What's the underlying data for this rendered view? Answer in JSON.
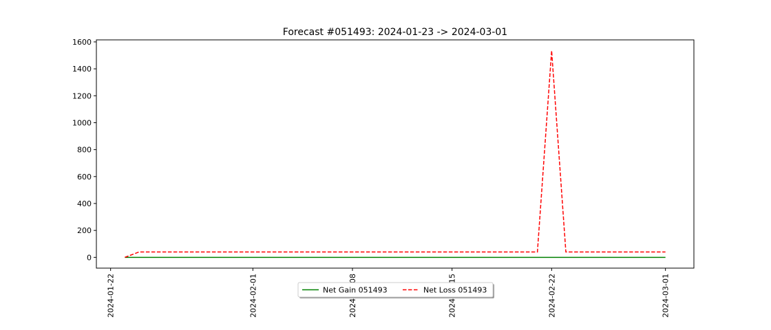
{
  "chart_data": {
    "type": "line",
    "title": "Forecast #051493: 2024-01-23 -> 2024-03-01",
    "xlabel": "",
    "ylabel": "",
    "x": [
      "2024-01-23",
      "2024-01-24",
      "2024-01-25",
      "2024-01-26",
      "2024-01-27",
      "2024-01-28",
      "2024-01-29",
      "2024-01-30",
      "2024-01-31",
      "2024-02-01",
      "2024-02-02",
      "2024-02-03",
      "2024-02-04",
      "2024-02-05",
      "2024-02-06",
      "2024-02-07",
      "2024-02-08",
      "2024-02-09",
      "2024-02-10",
      "2024-02-11",
      "2024-02-12",
      "2024-02-13",
      "2024-02-14",
      "2024-02-15",
      "2024-02-16",
      "2024-02-17",
      "2024-02-18",
      "2024-02-19",
      "2024-02-20",
      "2024-02-21",
      "2024-02-22",
      "2024-02-23",
      "2024-02-24",
      "2024-02-25",
      "2024-02-26",
      "2024-02-27",
      "2024-02-28",
      "2024-02-29",
      "2024-03-01"
    ],
    "series": [
      {
        "name": "Net Gain 051493",
        "color": "#008000",
        "style": "solid",
        "values": [
          0,
          0,
          0,
          0,
          0,
          0,
          0,
          0,
          0,
          0,
          0,
          0,
          0,
          0,
          0,
          0,
          0,
          0,
          0,
          0,
          0,
          0,
          0,
          0,
          0,
          0,
          0,
          0,
          0,
          0,
          0,
          0,
          0,
          0,
          0,
          0,
          0,
          0,
          0
        ]
      },
      {
        "name": "Net Loss 051493",
        "color": "#ff0000",
        "style": "dashed",
        "values": [
          0,
          40,
          40,
          40,
          40,
          40,
          40,
          40,
          40,
          40,
          40,
          40,
          40,
          40,
          40,
          40,
          40,
          40,
          40,
          40,
          40,
          40,
          40,
          40,
          40,
          40,
          40,
          40,
          40,
          40,
          1535,
          40,
          40,
          40,
          40,
          40,
          40,
          40,
          40
        ]
      }
    ],
    "xticks": [
      "2024-01-22",
      "2024-02-01",
      "2024-02-08",
      "2024-02-15",
      "2024-02-22",
      "2024-03-01"
    ],
    "xlim": [
      "2024-01-21",
      "2024-03-03"
    ],
    "ylim": [
      -80,
      1615
    ],
    "yticks": [
      0,
      200,
      400,
      600,
      800,
      1000,
      1200,
      1400,
      1600
    ],
    "grid": false,
    "legend_position": "lower center"
  }
}
